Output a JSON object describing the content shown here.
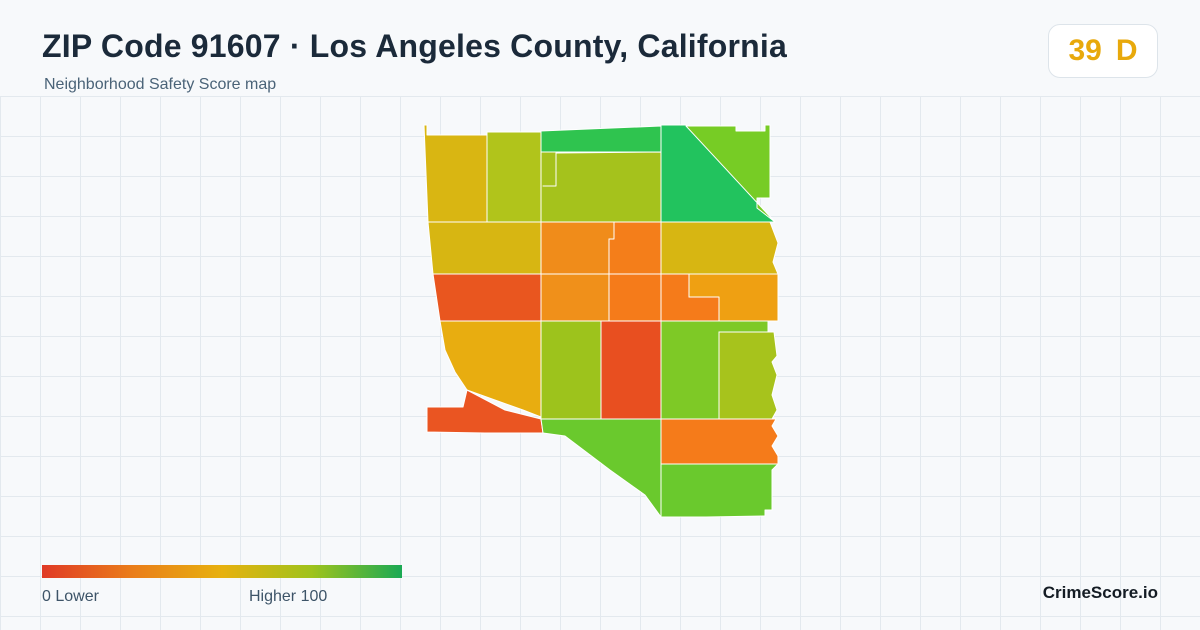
{
  "header": {
    "title": "ZIP Code 91607 · Los Angeles County, California",
    "subtitle": "Neighborhood Safety Score map"
  },
  "score_badge": {
    "score": "39",
    "grade": "D",
    "color": "#e8a90c"
  },
  "map": {
    "region": "ZIP Code 91607",
    "scale": {
      "min": 0,
      "max": 100,
      "colors": [
        "#e03a26",
        "#ea7d1a",
        "#e7b10f",
        "#9fc31c",
        "#1aa954"
      ]
    },
    "cells": [
      {
        "id": "nw-1",
        "color": "#d9b612"
      },
      {
        "id": "nw-2",
        "color": "#b1c41b"
      },
      {
        "id": "n-strip",
        "color": "#2fc44f"
      },
      {
        "id": "n-center",
        "color": "#a5c21c"
      },
      {
        "id": "ne-green",
        "color": "#22c35e"
      },
      {
        "id": "ne-lime",
        "color": "#77cc25"
      },
      {
        "id": "w-row2",
        "color": "#d7b612"
      },
      {
        "id": "c-row2a",
        "color": "#f08c1a"
      },
      {
        "id": "c-row2b",
        "color": "#f47e1a"
      },
      {
        "id": "e-row2",
        "color": "#d7b612"
      },
      {
        "id": "w-red",
        "color": "#e9561f"
      },
      {
        "id": "c-row3a",
        "color": "#f0901a"
      },
      {
        "id": "c-row3b",
        "color": "#f57b1a"
      },
      {
        "id": "c-row3c",
        "color": "#f57b1a"
      },
      {
        "id": "e-row3",
        "color": "#efa012"
      },
      {
        "id": "w-gold",
        "color": "#e8ad10"
      },
      {
        "id": "c-row4a",
        "color": "#9dc31c"
      },
      {
        "id": "c-red",
        "color": "#e84f20"
      },
      {
        "id": "c-row4c",
        "color": "#7ec926"
      },
      {
        "id": "e-row4",
        "color": "#a7c31c"
      },
      {
        "id": "sw-red",
        "color": "#ea5522"
      },
      {
        "id": "s-lime",
        "color": "#6ac92d"
      },
      {
        "id": "se-orange",
        "color": "#f57b1a"
      },
      {
        "id": "se-green",
        "color": "#6ac92d"
      }
    ]
  },
  "legend": {
    "low_label": "0  Lower",
    "high_label": "Higher  100"
  },
  "brand": "CrimeScore.io"
}
